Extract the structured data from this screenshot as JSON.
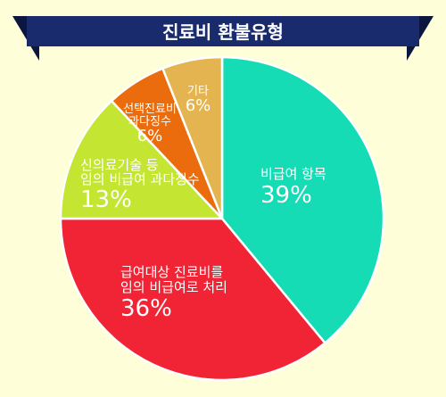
{
  "title": "진료비 환불유형",
  "colors": {
    "background": "#fefed8",
    "banner": "#1a2b6d",
    "banner_shadow": "#0c163f"
  },
  "chart_data": {
    "type": "pie",
    "title": "진료비 환불유형",
    "slices": [
      {
        "label_lines": [
          "비급여 항목"
        ],
        "value_label": "39%",
        "value": 39,
        "color": "#15dcb4",
        "text_size": "large"
      },
      {
        "label_lines": [
          "급여대상 진료비를",
          "임의 비급여로 처리"
        ],
        "value_label": "36%",
        "value": 36,
        "color": "#f02434",
        "text_size": "large"
      },
      {
        "label_lines": [
          "신의료기술 등",
          "임의 비급여 과다징수"
        ],
        "value_label": "13%",
        "value": 13,
        "color": "#c4e632",
        "text_size": "large"
      },
      {
        "label_lines": [
          "선택진료비",
          "과다징수"
        ],
        "value_label": "6%",
        "value": 6,
        "color": "#ea6c0c",
        "text_size": "small"
      },
      {
        "label_lines": [
          "기타"
        ],
        "value_label": "6%",
        "value": 6,
        "color": "#e4b450",
        "text_size": "small"
      }
    ]
  }
}
